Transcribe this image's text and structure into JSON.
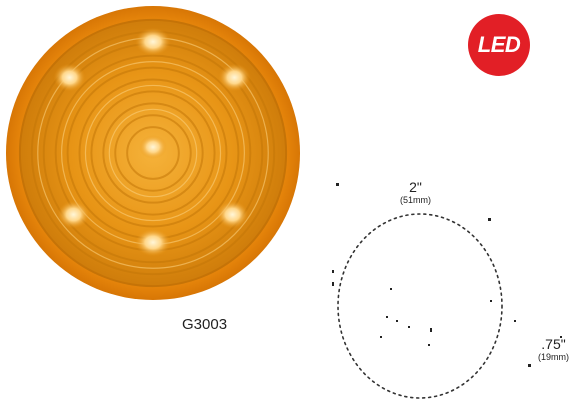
{
  "badge": {
    "label": "LED",
    "color": "#e21f26"
  },
  "product": {
    "part_number": "G3003",
    "lens_color": "#f29a10"
  },
  "dimensions": {
    "diameter": {
      "value": "2\"",
      "metric": "(51mm)"
    },
    "depth": {
      "value": ".75\"",
      "metric": "(19mm)"
    }
  }
}
